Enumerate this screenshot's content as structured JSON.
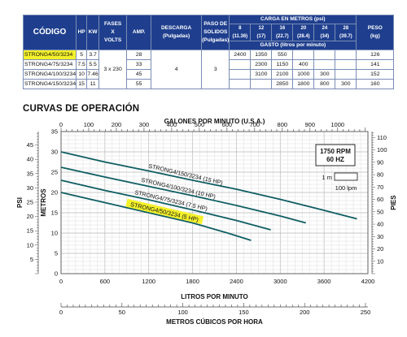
{
  "table": {
    "headers": {
      "codigo": "CÓDIGO",
      "hp": "HP",
      "kw": "KW",
      "fases_line1": "FASES",
      "fases_line2": "X",
      "fases_line3": "VOLTS",
      "amp": "AMP.",
      "descarga_line1": "DESCARGA",
      "descarga_line2": "(Pulgadas)",
      "paso_line1": "PASO DE",
      "paso_line2": "SOLIDOS",
      "paso_line3": "(Pulgadas)",
      "carga": "CARGA EN METROS (psi)",
      "gasto": "GASTO (litros por minuto)",
      "peso_line1": "PESO",
      "peso_line2": "(kg)"
    },
    "head_cols": [
      {
        "m": "8",
        "psi": "(11.36)"
      },
      {
        "m": "12",
        "psi": "(17)"
      },
      {
        "m": "16",
        "psi": "(22.7)"
      },
      {
        "m": "20",
        "psi": "(28.4)"
      },
      {
        "m": "24",
        "psi": "(34)"
      },
      {
        "m": "28",
        "psi": "(39.7)"
      }
    ],
    "fases_value": "3 x 230",
    "descarga_value": "4",
    "paso_value": "3",
    "rows": [
      {
        "code": "STRONG4/50/3234",
        "hp": "5",
        "kw": "3.7",
        "amp": "28",
        "flows": [
          "2400",
          "1350",
          "550",
          "",
          "",
          ""
        ],
        "peso": "126"
      },
      {
        "code": "STRONG4/75/3234",
        "hp": "7.5",
        "kw": "5.5",
        "amp": "33",
        "flows": [
          "",
          "2300",
          "1150",
          "400",
          "",
          ""
        ],
        "peso": "141"
      },
      {
        "code": "STRONG4/100/3234",
        "hp": "10",
        "kw": "7.46",
        "amp": "45",
        "flows": [
          "",
          "3100",
          "2100",
          "1000",
          "300",
          ""
        ],
        "peso": "152"
      },
      {
        "code": "STRONG4/150/3234",
        "hp": "15",
        "kw": "11",
        "amp": "55",
        "flows": [
          "",
          "",
          "2850",
          "1800",
          "800",
          "300"
        ],
        "peso": "160"
      }
    ]
  },
  "section_title": "CURVAS DE OPERACIÓN",
  "chart_data": {
    "type": "line",
    "top_axis": {
      "label": "GALONES POR MINUTO (U.S.A.)",
      "ticks": [
        "0",
        "100",
        "200",
        "300",
        "400",
        "500",
        "600",
        "700",
        "800",
        "900",
        "1000"
      ]
    },
    "x_axis": {
      "label": "LITROS POR MINUTO",
      "ticks": [
        "0",
        "600",
        "1200",
        "1800",
        "2400",
        "3000",
        "3600",
        "4200"
      ],
      "range": [
        0,
        4200
      ]
    },
    "bottom_axis": {
      "label": "METROS CÚBICOS POR HORA",
      "ticks": [
        "0",
        "50",
        "100",
        "150",
        "200",
        "250"
      ]
    },
    "y_left_psi": {
      "label": "PSI",
      "ticks": [
        "5",
        "10",
        "15",
        "20",
        "25",
        "30",
        "35",
        "40",
        "45"
      ]
    },
    "y_left_m": {
      "label": "METROS",
      "ticks": [
        "0",
        "5",
        "10",
        "15",
        "20",
        "25",
        "30",
        "35"
      ],
      "range": [
        0,
        35
      ]
    },
    "y_right_pies": {
      "label": "PIES",
      "ticks": [
        "10",
        "20",
        "30",
        "40",
        "50",
        "60",
        "70",
        "80",
        "90",
        "100",
        "110"
      ]
    },
    "speed_box": {
      "line1": "1750 RPM",
      "line2": "60 HZ"
    },
    "scale_box": {
      "vertical": "1 m",
      "horizontal": "100 lpm"
    },
    "series": [
      {
        "name": "STRONG4/150/3234 (15 HP)",
        "x": [
          0,
          600,
          1200,
          1800,
          2400,
          3000,
          3600,
          4050
        ],
        "y": [
          30.0,
          27.5,
          25.3,
          23.0,
          20.8,
          18.3,
          15.6,
          13.5
        ],
        "highlight": false
      },
      {
        "name": "STRONG4/100/3234 (10 HP)",
        "x": [
          0,
          600,
          1200,
          1800,
          2400,
          3000,
          3350
        ],
        "y": [
          26.2,
          23.8,
          21.5,
          19.2,
          16.8,
          14.2,
          12.5
        ],
        "highlight": false
      },
      {
        "name": "STRONG4/75/3234 (7.5 HP)",
        "x": [
          0,
          600,
          1200,
          1800,
          2400,
          2870
        ],
        "y": [
          23.0,
          20.5,
          18.2,
          15.7,
          13.1,
          10.8
        ],
        "highlight": false
      },
      {
        "name": "STRONG4/50/3234 (5 HP)",
        "x": [
          0,
          600,
          1200,
          1800,
          2280,
          2600
        ],
        "y": [
          20.0,
          17.5,
          15.0,
          12.5,
          10.0,
          8.2
        ],
        "highlight": true
      }
    ]
  },
  "colors": {
    "header_bg": "#1f3f8e",
    "curve": "#0f5e62",
    "highlight": "#f4f12b"
  }
}
